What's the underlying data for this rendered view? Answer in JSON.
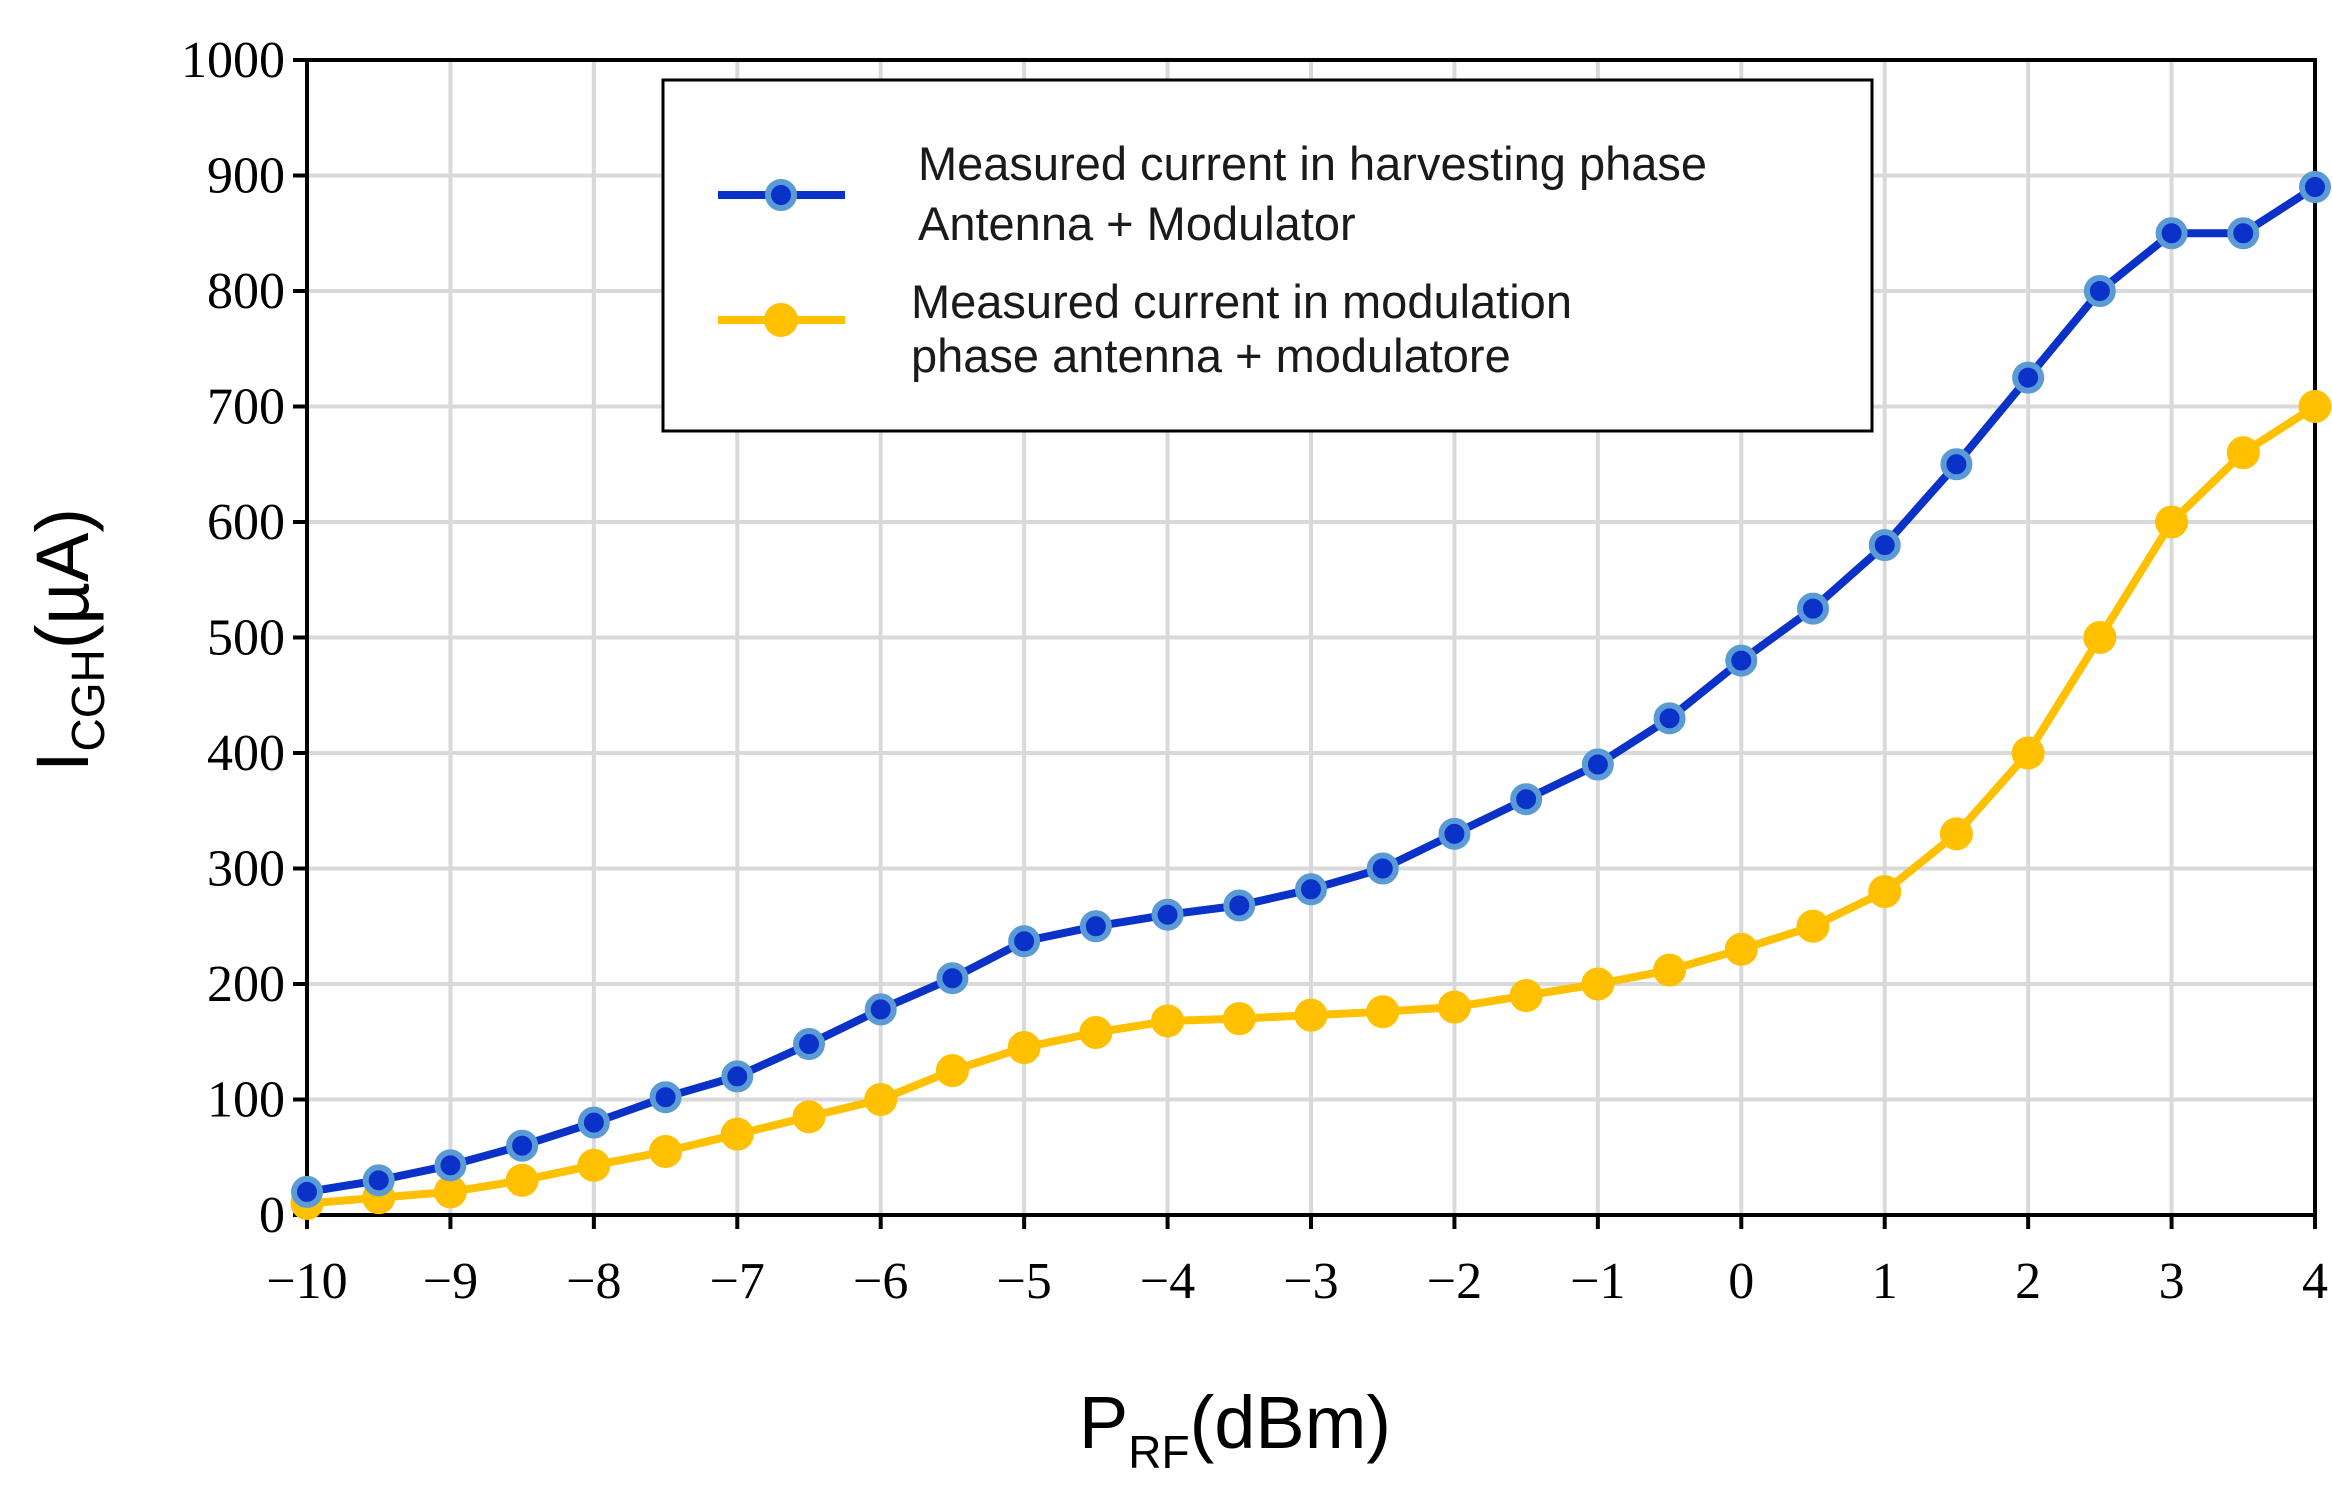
{
  "chart_data": {
    "type": "line",
    "x_label": {
      "main": "P",
      "sub": "RF",
      "unit": "(dBm)"
    },
    "y_label": {
      "main": "I",
      "sub": "CGH",
      "unit": "(µA)"
    },
    "xlim": [
      -10,
      4
    ],
    "ylim": [
      0,
      1000
    ],
    "x_ticks": [
      -10,
      -9,
      -8,
      -7,
      -6,
      -5,
      -4,
      -3,
      -2,
      -1,
      0,
      1,
      2,
      3,
      4
    ],
    "x_tick_labels": [
      "−10",
      "−9",
      "−8",
      "−7",
      "−6",
      "−5",
      "−4",
      "−3",
      "−2",
      "−1",
      "0",
      "1",
      "2",
      "3",
      "4"
    ],
    "y_ticks": [
      0,
      100,
      200,
      300,
      400,
      500,
      600,
      700,
      800,
      900,
      1000
    ],
    "y_tick_labels": [
      "0",
      "100",
      "200",
      "300",
      "400",
      "500",
      "600",
      "700",
      "800",
      "900",
      "1000"
    ],
    "grid": true,
    "legend_position": "top-center",
    "x": [
      -10,
      -9.5,
      -9,
      -8.5,
      -8,
      -7.5,
      -7,
      -6.5,
      -6,
      -5.5,
      -5,
      -4.5,
      -4,
      -3.5,
      -3,
      -2.5,
      -2,
      -1.5,
      -1,
      -0.5,
      0,
      0.5,
      1,
      1.5,
      2,
      2.5,
      3,
      3.5,
      4
    ],
    "series": [
      {
        "name": "harvesting",
        "legend_lines": [
          "Measured current in harvesting phase",
          "Antenna + Modulator"
        ],
        "color": "#0a32c8",
        "marker_color": "#5b9bd5",
        "values": [
          20,
          30,
          43,
          60,
          80,
          102,
          120,
          148,
          178,
          205,
          237,
          250,
          260,
          268,
          282,
          300,
          330,
          360,
          390,
          430,
          480,
          525,
          580,
          650,
          725,
          800,
          850,
          850,
          890
        ]
      },
      {
        "name": "modulation",
        "legend_lines": [
          "Measured current in modulation",
          "phase antenna + modulatore"
        ],
        "color": "#ffc000",
        "marker_color": "#ffc000",
        "values": [
          10,
          15,
          20,
          30,
          43,
          55,
          70,
          85,
          100,
          125,
          145,
          158,
          168,
          170,
          173,
          176,
          180,
          190,
          200,
          212,
          230,
          250,
          280,
          330,
          400,
          500,
          600,
          660,
          700
        ]
      }
    ]
  }
}
